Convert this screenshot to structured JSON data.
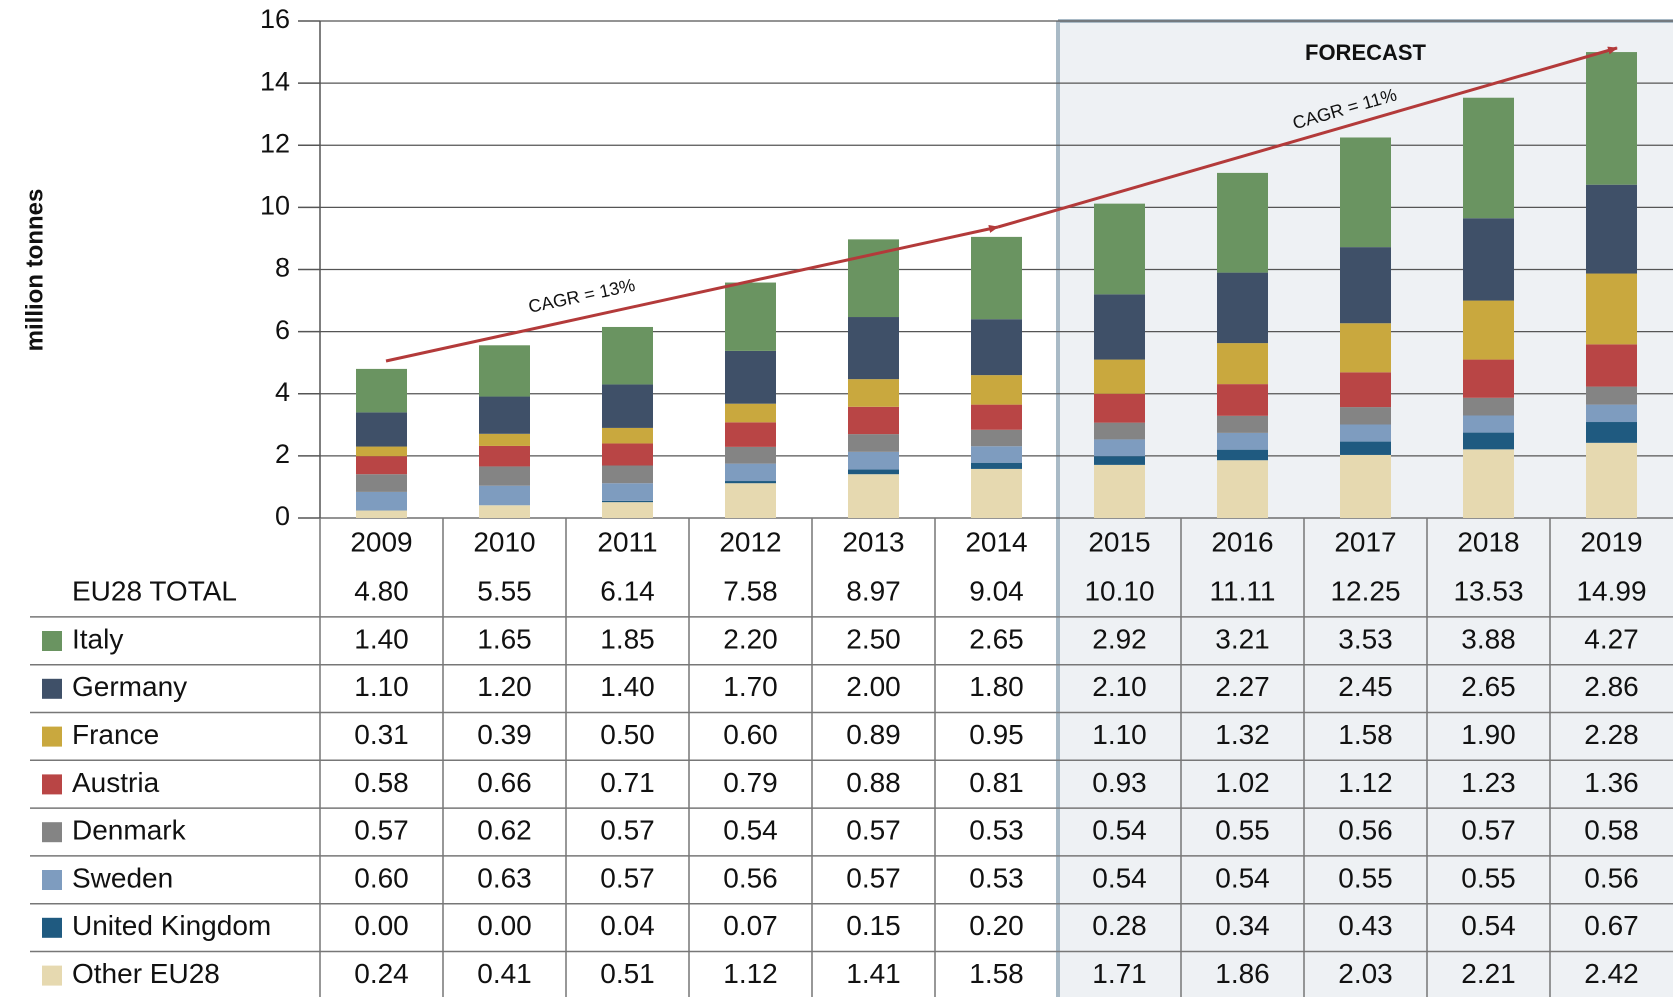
{
  "chart_data": {
    "type": "stacked_bar",
    "ylabel": "million tonnes",
    "categories": [
      "2009",
      "2010",
      "2011",
      "2012",
      "2013",
      "2014",
      "2015",
      "2016",
      "2017",
      "2018",
      "2019"
    ],
    "ylim": [
      0,
      16
    ],
    "yticks": [
      0,
      2,
      4,
      6,
      8,
      10,
      12,
      14,
      16
    ],
    "grid": true,
    "forecast": {
      "label": "FORECAST",
      "start": "2015"
    },
    "annotations": [
      "CAGR = 13%",
      "CAGR = 11%"
    ],
    "total": {
      "name": "EU28 TOTAL",
      "values": [
        4.8,
        5.55,
        6.14,
        7.58,
        8.97,
        9.04,
        10.1,
        11.11,
        12.25,
        13.53,
        14.99
      ],
      "value_labels": [
        "4.80",
        "5.55",
        "6.14",
        "7.58",
        "8.97",
        "9.04",
        "10.10",
        "11.11",
        "12.25",
        "13.53",
        "14.99"
      ]
    },
    "series": [
      {
        "name": "Italy",
        "color": "#6a9461",
        "values": [
          1.4,
          1.65,
          1.85,
          2.2,
          2.5,
          2.65,
          2.92,
          3.21,
          3.53,
          3.88,
          4.27
        ],
        "value_labels": [
          "1.40",
          "1.65",
          "1.85",
          "2.20",
          "2.50",
          "2.65",
          "2.92",
          "3.21",
          "3.53",
          "3.88",
          "4.27"
        ]
      },
      {
        "name": "Germany",
        "color": "#3f5068",
        "values": [
          1.1,
          1.2,
          1.4,
          1.7,
          2.0,
          1.8,
          2.1,
          2.27,
          2.45,
          2.65,
          2.86
        ],
        "value_labels": [
          "1.10",
          "1.20",
          "1.40",
          "1.70",
          "2.00",
          "1.80",
          "2.10",
          "2.27",
          "2.45",
          "2.65",
          "2.86"
        ]
      },
      {
        "name": "France",
        "color": "#c9a83e",
        "values": [
          0.31,
          0.39,
          0.5,
          0.6,
          0.89,
          0.95,
          1.1,
          1.32,
          1.58,
          1.9,
          2.28
        ],
        "value_labels": [
          "0.31",
          "0.39",
          "0.50",
          "0.60",
          "0.89",
          "0.95",
          "1.10",
          "1.32",
          "1.58",
          "1.90",
          "2.28"
        ]
      },
      {
        "name": "Austria",
        "color": "#b94545",
        "values": [
          0.58,
          0.66,
          0.71,
          0.79,
          0.88,
          0.81,
          0.93,
          1.02,
          1.12,
          1.23,
          1.36
        ],
        "value_labels": [
          "0.58",
          "0.66",
          "0.71",
          "0.79",
          "0.88",
          "0.81",
          "0.93",
          "1.02",
          "1.12",
          "1.23",
          "1.36"
        ]
      },
      {
        "name": "Denmark",
        "color": "#848484",
        "values": [
          0.57,
          0.62,
          0.57,
          0.54,
          0.57,
          0.53,
          0.54,
          0.55,
          0.56,
          0.57,
          0.58
        ],
        "value_labels": [
          "0.57",
          "0.62",
          "0.57",
          "0.54",
          "0.57",
          "0.53",
          "0.54",
          "0.55",
          "0.56",
          "0.57",
          "0.58"
        ]
      },
      {
        "name": "Sweden",
        "color": "#7e9cbf",
        "values": [
          0.6,
          0.63,
          0.57,
          0.56,
          0.57,
          0.53,
          0.54,
          0.54,
          0.55,
          0.55,
          0.56
        ],
        "value_labels": [
          "0.60",
          "0.63",
          "0.57",
          "0.56",
          "0.57",
          "0.53",
          "0.54",
          "0.54",
          "0.55",
          "0.55",
          "0.56"
        ]
      },
      {
        "name": "United Kingdom",
        "color": "#1f5a80",
        "values": [
          0.0,
          0.0,
          0.04,
          0.07,
          0.15,
          0.2,
          0.28,
          0.34,
          0.43,
          0.54,
          0.67
        ],
        "value_labels": [
          "0.00",
          "0.00",
          "0.04",
          "0.07",
          "0.15",
          "0.20",
          "0.28",
          "0.34",
          "0.43",
          "0.54",
          "0.67"
        ]
      },
      {
        "name": "Other EU28",
        "color": "#e6d9b0",
        "values": [
          0.24,
          0.41,
          0.51,
          1.12,
          1.41,
          1.58,
          1.71,
          1.86,
          2.03,
          2.21,
          2.42
        ],
        "value_labels": [
          "0.24",
          "0.41",
          "0.51",
          "1.12",
          "1.41",
          "1.58",
          "1.71",
          "1.86",
          "2.03",
          "2.21",
          "2.42"
        ]
      }
    ]
  }
}
